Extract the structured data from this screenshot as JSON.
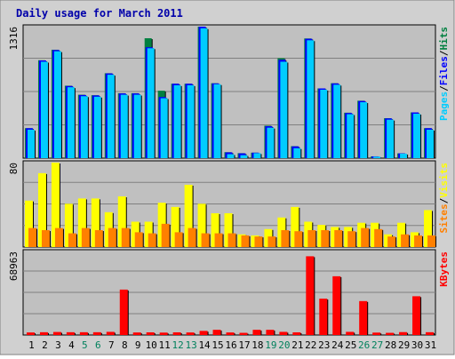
{
  "title": "Daily usage for March 2011",
  "colors": {
    "background": "#c0c0c0",
    "frame": "#d0d0d0",
    "title": "#0000aa",
    "pages": "#00ccff",
    "files": "#0000ff",
    "hits": "#008040",
    "visits": "#ffff00",
    "sites": "#ff8000",
    "kbytes": "#ff0000",
    "weekend_day": "#00805c",
    "weekday": "#000000"
  },
  "legend": {
    "top": [
      {
        "text": "Pages",
        "color": "#00ccff"
      },
      {
        "text": "/",
        "color": "#000000"
      },
      {
        "text": "Files",
        "color": "#0000ff"
      },
      {
        "text": "/",
        "color": "#000000"
      },
      {
        "text": "Hits",
        "color": "#008040"
      }
    ],
    "middle": [
      {
        "text": "Sites",
        "color": "#ff8000"
      },
      {
        "text": "/",
        "color": "#000000"
      },
      {
        "text": "Visits",
        "color": "#ffff00"
      }
    ],
    "bottom": [
      {
        "text": "KBytes",
        "color": "#ff0000"
      }
    ]
  },
  "chart_data": {
    "type": "bar",
    "title": "Daily usage for March 2011",
    "categories": [
      "1",
      "2",
      "3",
      "4",
      "5",
      "6",
      "7",
      "8",
      "9",
      "10",
      "11",
      "12",
      "13",
      "14",
      "15",
      "16",
      "17",
      "18",
      "19",
      "20",
      "21",
      "22",
      "23",
      "24",
      "25",
      "26",
      "27",
      "28",
      "29",
      "30",
      "31"
    ],
    "weekend_days": [
      "5",
      "6",
      "12",
      "13",
      "19",
      "20",
      "26",
      "27"
    ],
    "panels": [
      {
        "id": "top",
        "ymax": 1316,
        "ymax_label": "1316",
        "series": [
          {
            "name": "Hits",
            "values": [
              300,
              980,
              1085,
              725,
              635,
              630,
              850,
              650,
              650,
              1200,
              675,
              745,
              745,
              1316,
              750,
              60,
              50,
              55,
              325,
              1000,
              120,
              1198,
              698,
              750,
              455,
              575,
              18,
              400,
              48,
              458,
              300
            ]
          },
          {
            "name": "Files",
            "values": [
              300,
              978,
              1082,
              722,
              632,
              628,
              848,
              648,
              648,
              1110,
              612,
              745,
              745,
              1316,
              748,
              58,
              48,
              55,
              320,
              985,
              118,
              1195,
              698,
              748,
              452,
              572,
              18,
              398,
              48,
              458,
              300
            ]
          },
          {
            "name": "Pages",
            "values": [
              285,
              965,
              1070,
              710,
              620,
              615,
              835,
              635,
              635,
              1100,
              600,
              730,
              730,
              1300,
              740,
              40,
              30,
              50,
              305,
              965,
              100,
              1180,
              685,
              735,
              440,
              560,
              15,
              385,
              45,
              445,
              285
            ]
          }
        ]
      },
      {
        "id": "middle",
        "ymax": 80,
        "ymax_label": "80",
        "series": [
          {
            "name": "Visits",
            "values": [
              44,
              70,
              80,
              41,
              46,
              46,
              33,
              48,
              24,
              24,
              42,
              38,
              59,
              41,
              32,
              32,
              12,
              11,
              17,
              28,
              38,
              24,
              21,
              19,
              19,
              23,
              23,
              12,
              23,
              14,
              35
            ]
          },
          {
            "name": "Sites",
            "values": [
              18,
              16,
              18,
              13,
              18,
              16,
              18,
              18,
              14,
              13,
              22,
              14,
              18,
              13,
              13,
              13,
              11,
              10,
              10,
              16,
              15,
              16,
              16,
              16,
              15,
              18,
              17,
              10,
              12,
              11,
              11
            ]
          }
        ]
      },
      {
        "id": "bottom",
        "ymax": 68963,
        "ymax_label": "68963",
        "series": [
          {
            "name": "KBytes",
            "values": [
              2100,
              2300,
              2500,
              2300,
              2300,
              2300,
              2600,
              37500,
              2100,
              2200,
              2000,
              2200,
              2100,
              3400,
              4300,
              2100,
              1800,
              4300,
              4300,
              2600,
              2200,
              65000,
              30000,
              48500,
              2600,
              28000,
              2000,
              1800,
              2400,
              32000,
              2300
            ]
          }
        ]
      }
    ]
  }
}
